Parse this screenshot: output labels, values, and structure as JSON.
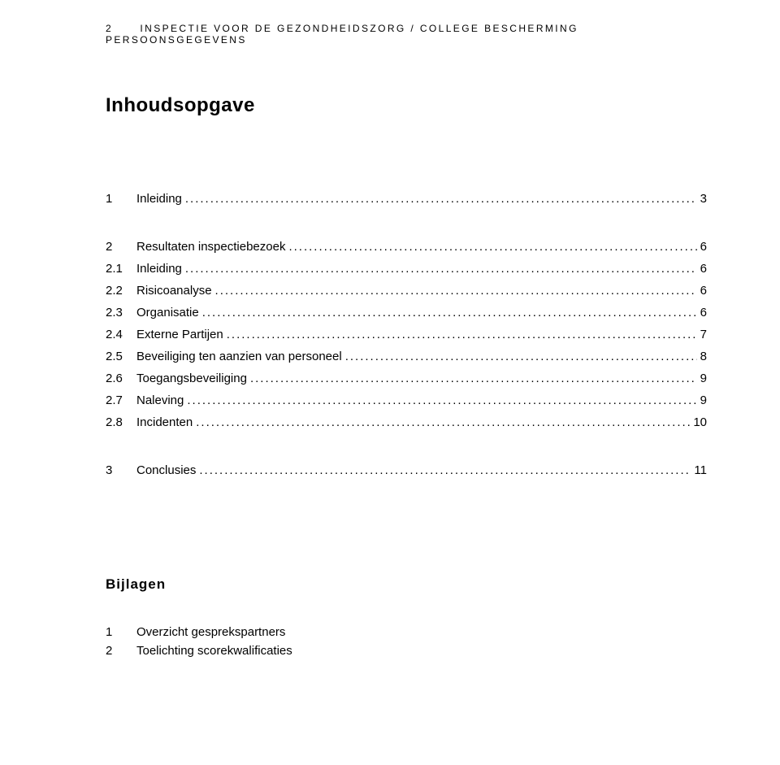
{
  "running_head": {
    "page_number": "2",
    "text": "INSPECTIE VOOR DE GEZONDHEIDSZORG / COLLEGE BESCHERMING PERSOONSGEGEVENS"
  },
  "title": "Inhoudsopgave",
  "toc": [
    {
      "num": "1",
      "label": "Inleiding",
      "page": "3",
      "top": true
    },
    {
      "num": "2",
      "label": "Resultaten inspectiebezoek",
      "page": "6",
      "top": true
    },
    {
      "num": "2.1",
      "label": "Inleiding",
      "page": "6"
    },
    {
      "num": "2.2",
      "label": "Risicoanalyse",
      "page": "6"
    },
    {
      "num": "2.3",
      "label": "Organisatie",
      "page": "6"
    },
    {
      "num": "2.4",
      "label": "Externe Partijen",
      "page": "7"
    },
    {
      "num": "2.5",
      "label": "Beveiliging ten aanzien van personeel",
      "page": "8"
    },
    {
      "num": "2.6",
      "label": "Toegangsbeveiliging",
      "page": "9"
    },
    {
      "num": "2.7",
      "label": "Naleving",
      "page": "9"
    },
    {
      "num": "2.8",
      "label": "Incidenten",
      "page": "10"
    },
    {
      "num": "3",
      "label": "Conclusies",
      "page": "11",
      "top": true
    }
  ],
  "attachments": {
    "heading": "Bijlagen",
    "items": [
      {
        "num": "1",
        "label": "Overzicht gesprekspartners"
      },
      {
        "num": "2",
        "label": "Toelichting scorekwalificaties"
      }
    ]
  },
  "leader_dots": "....................................................................................................................................................................................................................."
}
